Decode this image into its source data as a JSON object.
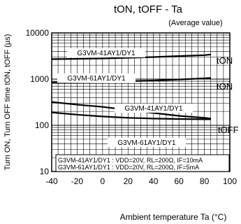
{
  "chart_data": {
    "type": "line",
    "title": "tON, tOFF - Ta",
    "subtitle": "(Average value)",
    "xlabel": "Ambient temperature Ta (°C)",
    "ylabel": "Turn ON, Turn OFF time tON, tOFF (µs)",
    "xlim": [
      -40,
      100
    ],
    "ylim": [
      10,
      10000
    ],
    "yscale": "log",
    "grid": true,
    "x_ticks": [
      "-40",
      "-20",
      "0",
      "20",
      "40",
      "60",
      "80",
      "100"
    ],
    "y_ticks": [
      "10",
      "100",
      "1000",
      "10000"
    ],
    "series": [
      {
        "name": "tON",
        "label": "G3VM-41AY1/DY1",
        "x": [
          -40,
          -20,
          0,
          20,
          40,
          60,
          80,
          85
        ],
        "y": [
          2700,
          2750,
          2800,
          2900,
          3000,
          3150,
          3300,
          3400
        ]
      },
      {
        "name": "tON",
        "label": "G3VM-61AY1/DY1",
        "x": [
          -40,
          -20,
          0,
          20,
          40,
          60,
          80,
          85
        ],
        "y": [
          850,
          860,
          870,
          900,
          930,
          980,
          1040,
          1060
        ]
      },
      {
        "name": "tOFF",
        "label": "G3VM-41AY1/DY1",
        "x": [
          -40,
          -20,
          0,
          20,
          40,
          60,
          80,
          85
        ],
        "y": [
          320,
          280,
          250,
          215,
          185,
          160,
          145,
          140
        ]
      },
      {
        "name": "tOFF",
        "label": "G3VM-61AY1/DY1",
        "x": [
          -40,
          -20,
          0,
          20,
          40,
          60,
          80,
          85
        ],
        "y": [
          190,
          170,
          155,
          145,
          140,
          137,
          135,
          135
        ]
      }
    ],
    "series_labels": {
      "ton": "tON",
      "toff": "tOFF"
    },
    "conditions": [
      "G3VM-41AY1/DY1 : VDD=20V, RL=200Ω, IF=10mA",
      "G3VM-61AY1/DY1 : VDD=20V, RL=200Ω, IF=5mA"
    ]
  }
}
